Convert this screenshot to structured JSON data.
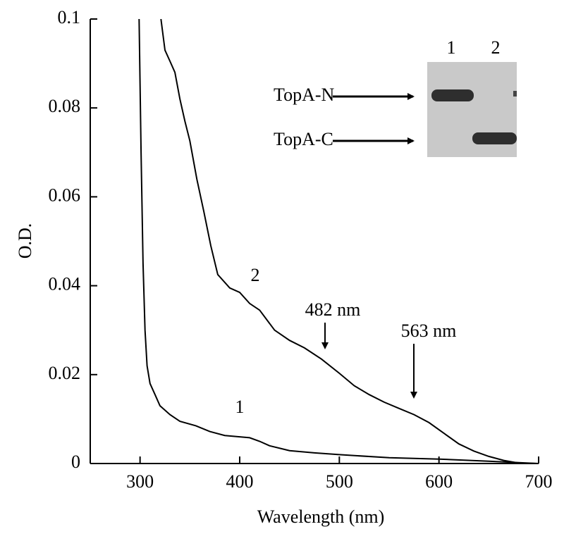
{
  "chart_data": {
    "type": "line",
    "x_label": "Wavelength (nm)",
    "y_label": "O.D.",
    "xlim": [
      250,
      700
    ],
    "ylim": [
      0,
      0.1
    ],
    "xticks": [
      300,
      400,
      500,
      600,
      700
    ],
    "yticks": [
      0,
      0.02,
      0.04,
      0.06,
      0.08,
      0.1
    ],
    "series": [
      {
        "name": "1",
        "color": "#000000",
        "x": [
          299,
          301,
          303,
          305,
          307,
          310,
          315,
          320,
          330,
          340,
          356,
          370,
          385,
          400,
          410,
          420,
          430,
          450,
          475,
          500,
          550,
          600,
          650,
          700
        ],
        "values": [
          0.1,
          0.07,
          0.045,
          0.03,
          0.022,
          0.018,
          0.0155,
          0.013,
          0.011,
          0.0095,
          0.0085,
          0.0072,
          0.0063,
          0.006,
          0.0058,
          0.005,
          0.004,
          0.0029,
          0.0024,
          0.002,
          0.0013,
          0.001,
          0.0005,
          0
        ]
      },
      {
        "name": "2",
        "color": "#000000",
        "x": [
          321,
          325,
          330,
          335,
          340,
          345,
          350,
          357,
          364,
          371,
          378,
          390,
          400,
          410,
          420,
          435,
          450,
          465,
          482,
          500,
          515,
          530,
          545,
          560,
          575,
          590,
          605,
          620,
          635,
          650,
          665,
          680,
          700
        ],
        "values": [
          0.1,
          0.093,
          0.0905,
          0.088,
          0.082,
          0.077,
          0.0726,
          0.064,
          0.0567,
          0.049,
          0.0425,
          0.0395,
          0.0385,
          0.036,
          0.0345,
          0.03,
          0.0277,
          0.026,
          0.0235,
          0.0203,
          0.0175,
          0.0155,
          0.0138,
          0.0124,
          0.011,
          0.0092,
          0.0068,
          0.0044,
          0.0028,
          0.0016,
          0.0007,
          0.0001,
          0
        ]
      }
    ],
    "annotations": [
      "482 nm",
      "563 nm"
    ]
  },
  "inset": {
    "lanes": [
      "1",
      "2"
    ],
    "bands": [
      "TopA-N",
      "TopA-C"
    ]
  }
}
